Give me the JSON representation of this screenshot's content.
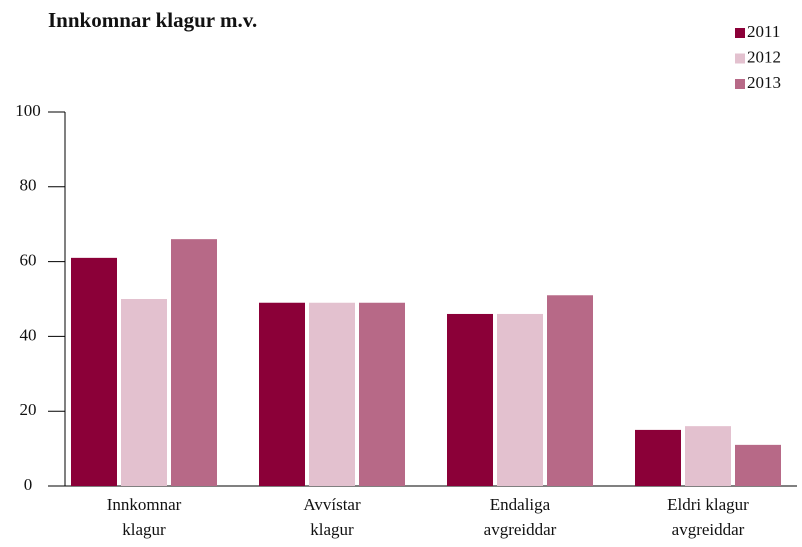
{
  "chart_data": {
    "type": "bar",
    "title": "Innkomnar klagur m.v.",
    "categories": [
      "Innkomnar\nklagur",
      "Avvístar\nklagur",
      "Endaliga\navgreiddar",
      "Eldri klagur\navgreiddar"
    ],
    "series": [
      {
        "name": "2011",
        "color": "#8b0038",
        "values": [
          61,
          49,
          46,
          15
        ]
      },
      {
        "name": "2012",
        "color": "#e3c1cf",
        "values": [
          50,
          49,
          46,
          16
        ]
      },
      {
        "name": "2013",
        "color": "#b76987",
        "values": [
          66,
          49,
          51,
          11
        ]
      }
    ],
    "ylim": [
      0,
      100
    ],
    "yticks": [
      0,
      20,
      40,
      60,
      80,
      100
    ],
    "legend": "top-right"
  }
}
